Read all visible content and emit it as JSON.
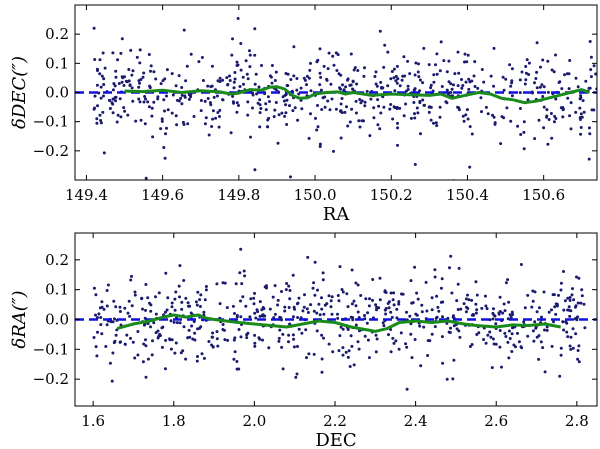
{
  "chart_data": [
    {
      "type": "scatter",
      "xlabel": "RA",
      "ylabel": "δDEC(″)",
      "xlim": [
        149.37,
        150.74
      ],
      "ylim": [
        -0.3,
        0.3
      ],
      "xticks": [
        149.4,
        149.6,
        149.8,
        150.0,
        150.2,
        150.4,
        150.6
      ],
      "xtick_labels": [
        "149.4",
        "149.6",
        "149.8",
        "150.0",
        "150.2",
        "150.4",
        "150.6"
      ],
      "yticks": [
        -0.2,
        -0.1,
        0.0,
        0.1,
        0.2
      ],
      "ytick_labels": [
        "−0.2",
        "−0.1",
        "0.0",
        "0.1",
        "0.2"
      ],
      "grid": false,
      "colors": {
        "points": "#1a1a6e",
        "trend": "#1a8a1a",
        "reference": "#1010e0"
      },
      "scatter_x_range": [
        149.42,
        150.74
      ],
      "scatter_count": 700,
      "scatter_sigma": 0.075,
      "reference_line_y": 0.0,
      "trend": {
        "x": [
          149.5,
          149.55,
          149.6,
          149.65,
          149.7,
          149.75,
          149.78,
          149.8,
          149.83,
          149.86,
          149.88,
          149.9,
          149.92,
          149.94,
          149.96,
          149.98,
          150.0,
          150.03,
          150.06,
          150.08,
          150.1,
          150.15,
          150.2,
          150.25,
          150.3,
          150.33,
          150.36,
          150.4,
          150.43,
          150.46,
          150.49,
          150.52,
          150.55,
          150.58,
          150.61,
          150.64,
          150.67,
          150.7,
          150.72
        ],
        "y": [
          0.005,
          0.003,
          0.008,
          0.0,
          0.006,
          0.002,
          -0.005,
          -0.002,
          0.01,
          0.008,
          0.018,
          0.02,
          0.012,
          -0.01,
          -0.02,
          -0.018,
          -0.005,
          0.0,
          0.002,
          -0.005,
          0.0,
          -0.01,
          -0.005,
          -0.008,
          -0.01,
          -0.005,
          -0.02,
          -0.008,
          0.0,
          -0.005,
          -0.02,
          -0.025,
          -0.035,
          -0.03,
          -0.02,
          -0.01,
          0.0,
          0.01,
          0.0
        ]
      }
    },
    {
      "type": "scatter",
      "xlabel": "DEC",
      "ylabel": "δRA(″)",
      "xlim": [
        1.555,
        2.85
      ],
      "ylim": [
        -0.29,
        0.29
      ],
      "xticks": [
        1.6,
        1.8,
        2.0,
        2.2,
        2.4,
        2.6,
        2.8
      ],
      "xtick_labels": [
        "1.6",
        "1.8",
        "2.0",
        "2.2",
        "2.4",
        "2.6",
        "2.8"
      ],
      "yticks": [
        -0.2,
        -0.1,
        0.0,
        0.1,
        0.2
      ],
      "ytick_labels": [
        "−0.2",
        "−0.1",
        "0.0",
        "0.1",
        "0.2"
      ],
      "grid": false,
      "colors": {
        "points": "#1a1a6e",
        "trend": "#1a8a1a",
        "reference": "#1010e0"
      },
      "scatter_x_range": [
        1.6,
        2.82
      ],
      "scatter_count": 700,
      "scatter_sigma": 0.075,
      "reference_line_y": 0.0,
      "trend": {
        "x": [
          1.66,
          1.7,
          1.74,
          1.78,
          1.8,
          1.83,
          1.86,
          1.88,
          1.9,
          1.93,
          1.96,
          2.0,
          2.04,
          2.08,
          2.12,
          2.16,
          2.2,
          2.24,
          2.28,
          2.3,
          2.33,
          2.36,
          2.4,
          2.44,
          2.48,
          2.52,
          2.55,
          2.6,
          2.64,
          2.68,
          2.72,
          2.76
        ],
        "y": [
          -0.03,
          -0.015,
          -0.005,
          0.01,
          0.015,
          0.008,
          0.015,
          0.005,
          0.0,
          -0.005,
          -0.01,
          -0.015,
          -0.02,
          -0.025,
          -0.015,
          -0.005,
          -0.01,
          -0.025,
          -0.035,
          -0.04,
          -0.03,
          -0.01,
          -0.005,
          -0.01,
          -0.005,
          -0.015,
          -0.02,
          -0.025,
          -0.018,
          -0.02,
          -0.015,
          -0.025
        ]
      }
    }
  ]
}
